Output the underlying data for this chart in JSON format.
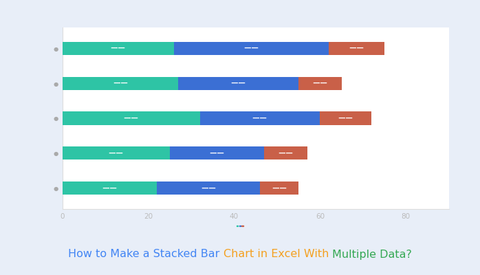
{
  "series1": [
    22,
    25,
    32,
    27,
    26
  ],
  "series2": [
    24,
    22,
    28,
    28,
    36
  ],
  "series3": [
    9,
    10,
    12,
    10,
    13
  ],
  "color1": "#2ec4a5",
  "color2": "#3b6fd4",
  "color3": "#c96048",
  "bg_outer": "#e8eef8",
  "bg_inner": "#ffffff",
  "tick_color": "#bbbbbb",
  "title_parts": [
    {
      "text": "How to Make a Stacked Bar ",
      "color": "#4285f4"
    },
    {
      "text": "Chart in Excel With ",
      "color": "#f4a020"
    },
    {
      "text": "Multiple Data?",
      "color": "#34a853"
    }
  ],
  "title_fontsize": 11.5,
  "bar_height": 0.38,
  "label_color": "#ffffff",
  "label_fontsize": 7.5,
  "xlim": [
    0,
    90
  ],
  "xticks": [
    0,
    20,
    40,
    60,
    80
  ],
  "dot_color": "#aaaaaa"
}
